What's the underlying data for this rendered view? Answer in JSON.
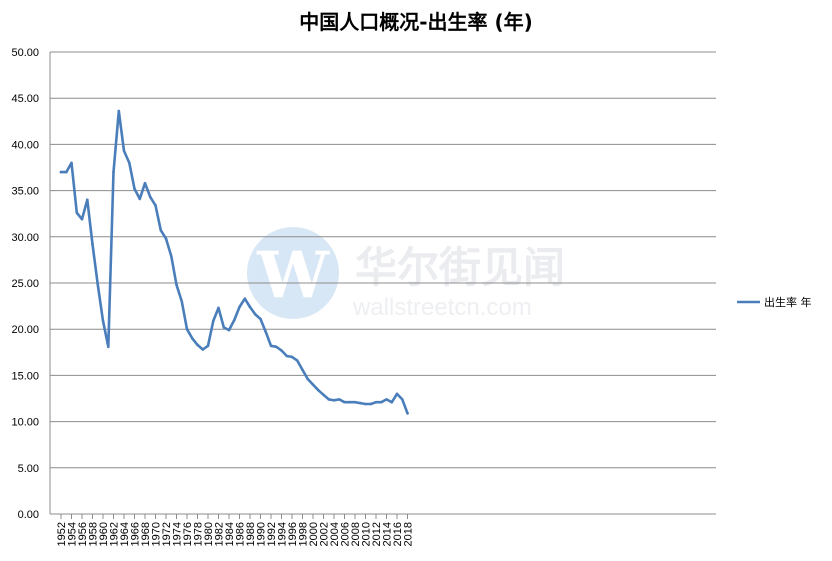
{
  "chart_data": {
    "type": "line",
    "title": "中国人口概况-出生率 (年)",
    "xlabel": "",
    "ylabel": "",
    "ylim": [
      0,
      50
    ],
    "y_ticks": [
      "0.00",
      "5.00",
      "10.00",
      "15.00",
      "20.00",
      "25.00",
      "30.00",
      "35.00",
      "40.00",
      "45.00",
      "50.00"
    ],
    "x_ticks": [
      "1952",
      "1954",
      "1956",
      "1958",
      "1960",
      "1962",
      "1964",
      "1966",
      "1968",
      "1970",
      "1972",
      "1974",
      "1976",
      "1978",
      "1980",
      "1982",
      "1984",
      "1986",
      "1988",
      "1990",
      "1992",
      "1994",
      "1996",
      "1998",
      "2000",
      "2002",
      "2004",
      "2006",
      "2008",
      "2010",
      "2012",
      "2014",
      "2016",
      "2018"
    ],
    "grid": "horizontal",
    "legend": "right",
    "x": [
      1952,
      1953,
      1954,
      1955,
      1956,
      1957,
      1958,
      1959,
      1960,
      1961,
      1962,
      1963,
      1964,
      1965,
      1966,
      1967,
      1968,
      1969,
      1970,
      1971,
      1972,
      1973,
      1974,
      1975,
      1976,
      1977,
      1978,
      1979,
      1980,
      1981,
      1982,
      1983,
      1984,
      1985,
      1986,
      1987,
      1988,
      1989,
      1990,
      1991,
      1992,
      1993,
      1994,
      1995,
      1996,
      1997,
      1998,
      1999,
      2000,
      2001,
      2002,
      2003,
      2004,
      2005,
      2006,
      2007,
      2008,
      2009,
      2010,
      2011,
      2012,
      2013,
      2014,
      2015,
      2016,
      2017,
      2018
    ],
    "series": [
      {
        "name": "出生率 年",
        "color": "#4a7ebb",
        "values": [
          37.0,
          37.0,
          38.0,
          32.6,
          31.9,
          34.0,
          29.2,
          24.8,
          20.9,
          18.1,
          37.0,
          43.6,
          39.3,
          38.0,
          35.2,
          34.1,
          35.8,
          34.3,
          33.4,
          30.7,
          29.8,
          27.9,
          24.8,
          23.0,
          20.0,
          19.0,
          18.3,
          17.8,
          18.2,
          20.9,
          22.3,
          20.2,
          19.9,
          21.0,
          22.4,
          23.3,
          22.4,
          21.6,
          21.1,
          19.7,
          18.2,
          18.1,
          17.7,
          17.1,
          17.0,
          16.6,
          15.6,
          14.6,
          14.0,
          13.4,
          12.9,
          12.4,
          12.3,
          12.4,
          12.1,
          12.1,
          12.1,
          12.0,
          11.9,
          11.9,
          12.1,
          12.1,
          12.4,
          12.1,
          13.0,
          12.4,
          10.9
        ]
      }
    ]
  },
  "watermark": {
    "brand_cn": "华尔街见闻",
    "brand_en": "wallstreetcn.com",
    "logo_letter": "W",
    "logo_color": "#5b9bd5"
  }
}
